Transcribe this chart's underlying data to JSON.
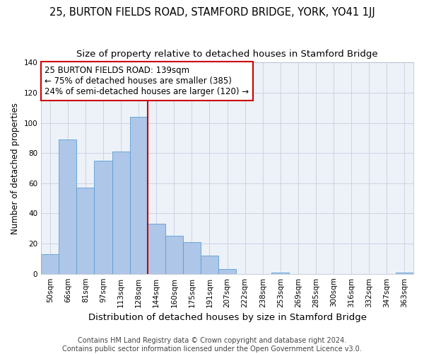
{
  "title": "25, BURTON FIELDS ROAD, STAMFORD BRIDGE, YORK, YO41 1JJ",
  "subtitle": "Size of property relative to detached houses in Stamford Bridge",
  "xlabel": "Distribution of detached houses by size in Stamford Bridge",
  "ylabel": "Number of detached properties",
  "bar_labels": [
    "50sqm",
    "66sqm",
    "81sqm",
    "97sqm",
    "113sqm",
    "128sqm",
    "144sqm",
    "160sqm",
    "175sqm",
    "191sqm",
    "207sqm",
    "222sqm",
    "238sqm",
    "253sqm",
    "269sqm",
    "285sqm",
    "300sqm",
    "316sqm",
    "332sqm",
    "347sqm",
    "363sqm"
  ],
  "bar_values": [
    13,
    89,
    57,
    75,
    81,
    104,
    33,
    25,
    21,
    12,
    3,
    0,
    0,
    1,
    0,
    0,
    0,
    0,
    0,
    0,
    1
  ],
  "bar_color": "#aec6e8",
  "bar_edge_color": "#5a9fd4",
  "vline_x_index": 6,
  "vline_color": "#cc0000",
  "annotation_text": "25 BURTON FIELDS ROAD: 139sqm\n← 75% of detached houses are smaller (385)\n24% of semi-detached houses are larger (120) →",
  "annotation_box_color": "#ffffff",
  "annotation_box_edge": "#cc0000",
  "ylim": [
    0,
    140
  ],
  "yticks": [
    0,
    20,
    40,
    60,
    80,
    100,
    120,
    140
  ],
  "grid_color": "#cdd5e3",
  "bg_color": "#edf1f8",
  "footer": "Contains HM Land Registry data © Crown copyright and database right 2024.\nContains public sector information licensed under the Open Government Licence v3.0.",
  "title_fontsize": 10.5,
  "subtitle_fontsize": 9.5,
  "xlabel_fontsize": 9.5,
  "ylabel_fontsize": 8.5,
  "tick_fontsize": 7.5,
  "annotation_fontsize": 8.5,
  "footer_fontsize": 7
}
